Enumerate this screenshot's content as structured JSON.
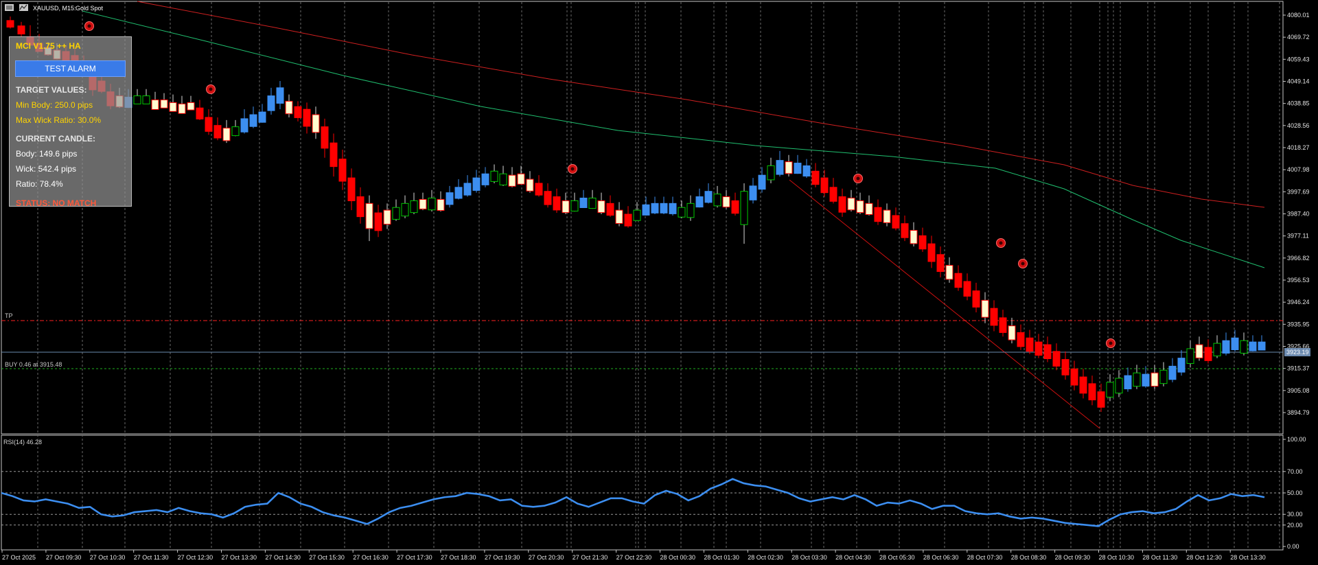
{
  "window": {
    "symbol_title": "XAUUSD, M15:",
    "symbol_desc": "Gold Spot",
    "icon": "chart-window-icon"
  },
  "panel": {
    "title": "MCI V1.75 ++ HA",
    "test_button": "TEST ALARM",
    "target_header": "TARGET VALUES:",
    "min_body": "Min Body: 250.0 pips",
    "max_wick": "Max Wick Ratio: 30.0%",
    "current_header": "CURRENT CANDLE:",
    "body": "Body: 149.6 pips",
    "wick": "Wick: 542.4 pips",
    "ratio": "Ratio: 78.4%",
    "status": "STATUS: NO MATCH"
  },
  "lines": {
    "tp_label": "TP",
    "buy_label": "BUY 0.46 at 3915.48",
    "current_price": "3923.19"
  },
  "price_axis": [
    "4080.01",
    "4069.72",
    "4059.43",
    "4049.14",
    "4038.85",
    "4028.56",
    "4018.27",
    "4007.98",
    "3997.69",
    "3987.40",
    "3977.11",
    "3966.82",
    "3956.53",
    "3946.24",
    "3935.95",
    "3925.66",
    "3915.37",
    "3905.08",
    "3894.79"
  ],
  "rsi": {
    "label": "RSI(14) 46.28",
    "axis": [
      "100.00",
      "70.00",
      "50.00",
      "30.00",
      "20.00",
      "0.00"
    ]
  },
  "time_axis": [
    "27 Oct 2025",
    "27 Oct 09:30",
    "27 Oct 10:30",
    "27 Oct 11:30",
    "27 Oct 12:30",
    "27 Oct 13:30",
    "27 Oct 14:30",
    "27 Oct 15:30",
    "27 Oct 16:30",
    "27 Oct 17:30",
    "27 Oct 18:30",
    "27 Oct 19:30",
    "27 Oct 20:30",
    "27 Oct 21:30",
    "27 Oct 22:30",
    "28 Oct 00:30",
    "28 Oct 01:30",
    "28 Oct 02:30",
    "28 Oct 03:30",
    "28 Oct 04:30",
    "28 Oct 05:30",
    "28 Oct 06:30",
    "28 Oct 07:30",
    "28 Oct 08:30",
    "28 Oct 09:30",
    "28 Oct 10:30",
    "28 Oct 11:30",
    "28 Oct 12:30",
    "28 Oct 13:30"
  ],
  "colors": {
    "bull": "#3c8ef0",
    "bear": "#ff0000",
    "ha_bull_hollow": "#00c800",
    "ha_doji_fill": "#fffbd0",
    "ma_fast": "#20c070",
    "ma_slow": "#d02020",
    "rsi_line": "#3c8ef0",
    "tp_line": "#ff2020",
    "buy_line": "#20b020",
    "price_line": "#6d8bb0"
  }
}
